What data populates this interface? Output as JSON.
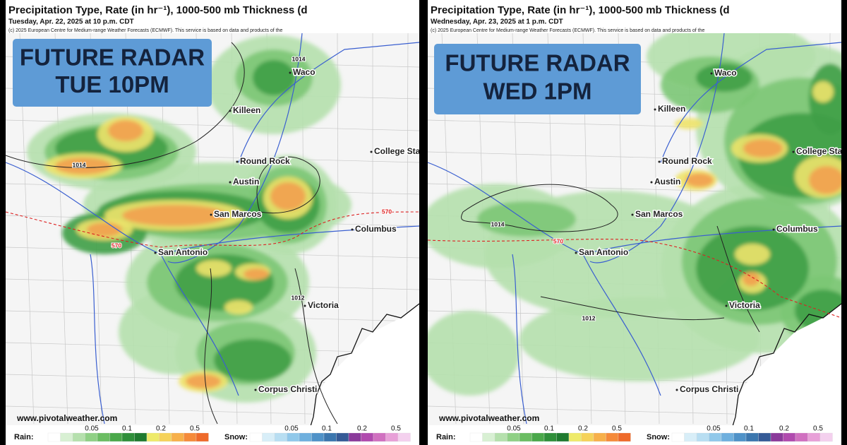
{
  "panels": [
    {
      "header": {
        "title": "Precipitation Type, Rate (in hr⁻¹), 1000-500 mb Thickness (d",
        "valid": "Tuesday, Apr. 22, 2025 at 10 p.m. CDT",
        "copyright": "(c) 2025 European Centre for Medium-range Weather Forecasts (ECMWF). This service is based on data and products of the"
      },
      "badge": [
        "FUTURE RADAR",
        "TUE 10PM"
      ],
      "cities": [
        "Waco",
        "Killeen",
        "College Station",
        "Round Rock",
        "Austin",
        "San Marcos",
        "Columbus",
        "San Antonio",
        "Victoria",
        "Corpus Christi"
      ],
      "contours": [
        "1014",
        "1014",
        "570",
        "570",
        "1012"
      ],
      "website": "www.pivotalweather.com",
      "legend": {
        "rain_label": "Rain:",
        "rain_ticks": [
          "0.05",
          "0.1",
          "0.2",
          "0.5"
        ],
        "snow_label": "Snow:",
        "snow_ticks": [
          "0.05",
          "0.1",
          "0.2",
          "0.5"
        ]
      }
    },
    {
      "header": {
        "title": "Precipitation Type, Rate (in hr⁻¹), 1000-500 mb Thickness (d",
        "valid": "Wednesday, Apr. 23, 2025 at 1 p.m. CDT",
        "copyright": "(c) 2025 European Centre for Medium-range Weather Forecasts (ECMWF). This service is based on data and products of the"
      },
      "badge": [
        "FUTURE RADAR",
        "WED 1PM"
      ],
      "cities": [
        "Waco",
        "Killeen",
        "College Station",
        "Round Rock",
        "Austin",
        "San Marcos",
        "Columbus",
        "San Antonio",
        "Victoria",
        "Corpus Christi"
      ],
      "contours": [
        "1014",
        "570",
        "1012"
      ],
      "website": "www.pivotalweather.com",
      "legend": {
        "rain_label": "Rain:",
        "rain_ticks": [
          "0.05",
          "0.1",
          "0.2",
          "0.5"
        ],
        "snow_label": "Snow:",
        "snow_ticks": [
          "0.05",
          "0.1",
          "0.2",
          "0.5"
        ]
      }
    }
  ]
}
